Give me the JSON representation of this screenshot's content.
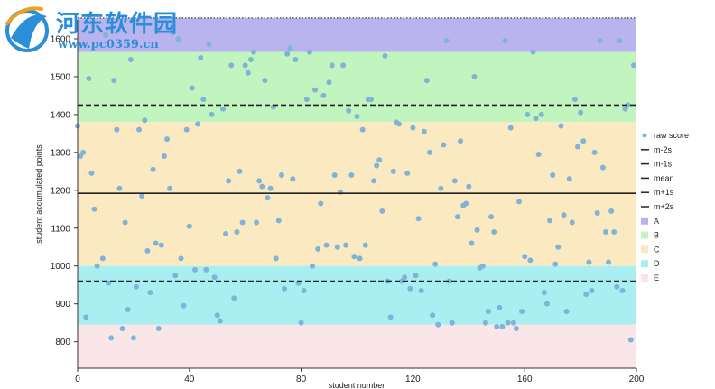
{
  "watermark": {
    "title": "河东软件园",
    "url": "www.pc0359.cn"
  },
  "chart_data": {
    "type": "scatter",
    "xlabel": "student number",
    "ylabel": "student accumulated points",
    "xlim": [
      0,
      200
    ],
    "ylim": [
      730,
      1650
    ],
    "x_ticks": [
      0,
      40,
      80,
      120,
      160,
      200
    ],
    "y_ticks": [
      800,
      900,
      1000,
      1100,
      1200,
      1300,
      1400,
      1500,
      1600
    ],
    "grade_bands": [
      {
        "label": "A",
        "from": 1565,
        "to": 1655,
        "color": "#b9b4ee"
      },
      {
        "label": "B",
        "from": 1380,
        "to": 1565,
        "color": "#c2f4c0"
      },
      {
        "label": "C",
        "from": 1000,
        "to": 1380,
        "color": "#fbe9c2"
      },
      {
        "label": "D",
        "from": 845,
        "to": 1000,
        "color": "#a9eef0"
      },
      {
        "label": "E",
        "from": 730,
        "to": 845,
        "color": "#fae6e8"
      }
    ],
    "reference_lines": [
      {
        "label": "m-2s",
        "y": 730,
        "style": "dotted"
      },
      {
        "label": "m-1s",
        "y": 960,
        "style": "dashed"
      },
      {
        "label": "mean",
        "y": 1192,
        "style": "solid"
      },
      {
        "label": "m+1s",
        "y": 1425,
        "style": "dashed"
      },
      {
        "label": "m+2s",
        "y": 1655,
        "style": "dotted"
      }
    ],
    "series": [
      {
        "name": "raw score",
        "color": "#7fb4d6",
        "points": [
          [
            0,
            1370
          ],
          [
            1,
            1290
          ],
          [
            2,
            1300
          ],
          [
            3,
            865
          ],
          [
            4,
            1495
          ],
          [
            5,
            1245
          ],
          [
            6,
            1150
          ],
          [
            7,
            1000
          ],
          [
            9,
            1020
          ],
          [
            10,
            1610
          ],
          [
            11,
            955
          ],
          [
            12,
            810
          ],
          [
            13,
            1490
          ],
          [
            14,
            1360
          ],
          [
            15,
            1205
          ],
          [
            16,
            835
          ],
          [
            17,
            1115
          ],
          [
            18,
            885
          ],
          [
            19,
            1545
          ],
          [
            20,
            810
          ],
          [
            21,
            945
          ],
          [
            22,
            1360
          ],
          [
            23,
            1185
          ],
          [
            24,
            1385
          ],
          [
            25,
            1040
          ],
          [
            26,
            930
          ],
          [
            27,
            1255
          ],
          [
            28,
            1060
          ],
          [
            29,
            835
          ],
          [
            30,
            1055
          ],
          [
            31,
            1290
          ],
          [
            32,
            1335
          ],
          [
            33,
            1205
          ],
          [
            34,
            1615
          ],
          [
            35,
            975
          ],
          [
            36,
            1600
          ],
          [
            37,
            1020
          ],
          [
            38,
            895
          ],
          [
            39,
            1360
          ],
          [
            40,
            1105
          ],
          [
            41,
            1470
          ],
          [
            42,
            990
          ],
          [
            43,
            1375
          ],
          [
            44,
            1550
          ],
          [
            45,
            1440
          ],
          [
            46,
            990
          ],
          [
            47,
            1585
          ],
          [
            48,
            1400
          ],
          [
            49,
            970
          ],
          [
            50,
            870
          ],
          [
            51,
            855
          ],
          [
            52,
            1415
          ],
          [
            53,
            1085
          ],
          [
            54,
            1225
          ],
          [
            55,
            1530
          ],
          [
            56,
            915
          ],
          [
            57,
            1090
          ],
          [
            58,
            1250
          ],
          [
            59,
            1115
          ],
          [
            60,
            1530
          ],
          [
            61,
            1510
          ],
          [
            62,
            1545
          ],
          [
            63,
            1565
          ],
          [
            64,
            1115
          ],
          [
            65,
            1225
          ],
          [
            66,
            1210
          ],
          [
            67,
            1490
          ],
          [
            68,
            1180
          ],
          [
            69,
            1205
          ],
          [
            70,
            1420
          ],
          [
            71,
            1020
          ],
          [
            72,
            1120
          ],
          [
            73,
            1240
          ],
          [
            74,
            940
          ],
          [
            75,
            1560
          ],
          [
            76,
            1575
          ],
          [
            77,
            1230
          ],
          [
            78,
            1545
          ],
          [
            79,
            955
          ],
          [
            80,
            850
          ],
          [
            81,
            935
          ],
          [
            82,
            1440
          ],
          [
            83,
            1565
          ],
          [
            84,
            1000
          ],
          [
            85,
            1465
          ],
          [
            86,
            1045
          ],
          [
            87,
            1165
          ],
          [
            88,
            1450
          ],
          [
            89,
            1055
          ],
          [
            90,
            1485
          ],
          [
            91,
            1530
          ],
          [
            92,
            1240
          ],
          [
            93,
            1050
          ],
          [
            94,
            1195
          ],
          [
            95,
            1530
          ],
          [
            96,
            1055
          ],
          [
            97,
            1410
          ],
          [
            98,
            1240
          ],
          [
            99,
            1025
          ],
          [
            100,
            1395
          ],
          [
            101,
            1020
          ],
          [
            102,
            1360
          ],
          [
            103,
            1055
          ],
          [
            104,
            1440
          ],
          [
            105,
            1440
          ],
          [
            106,
            1225
          ],
          [
            107,
            1265
          ],
          [
            108,
            1280
          ],
          [
            109,
            1145
          ],
          [
            110,
            1555
          ],
          [
            111,
            960
          ],
          [
            112,
            865
          ],
          [
            113,
            1250
          ],
          [
            114,
            1380
          ],
          [
            115,
            1375
          ],
          [
            116,
            960
          ],
          [
            117,
            970
          ],
          [
            118,
            1245
          ],
          [
            119,
            940
          ],
          [
            120,
            1365
          ],
          [
            121,
            975
          ],
          [
            122,
            1125
          ],
          [
            123,
            935
          ],
          [
            124,
            1355
          ],
          [
            125,
            1490
          ],
          [
            126,
            1300
          ],
          [
            127,
            870
          ],
          [
            128,
            1005
          ],
          [
            129,
            845
          ],
          [
            130,
            1205
          ],
          [
            131,
            1320
          ],
          [
            132,
            1595
          ],
          [
            133,
            960
          ],
          [
            134,
            850
          ],
          [
            135,
            1225
          ],
          [
            136,
            1130
          ],
          [
            137,
            1330
          ],
          [
            138,
            1160
          ],
          [
            139,
            1165
          ],
          [
            140,
            1210
          ],
          [
            141,
            1060
          ],
          [
            142,
            1500
          ],
          [
            143,
            1095
          ],
          [
            144,
            995
          ],
          [
            145,
            1000
          ],
          [
            146,
            850
          ],
          [
            147,
            880
          ],
          [
            148,
            1130
          ],
          [
            149,
            1090
          ],
          [
            150,
            840
          ],
          [
            151,
            890
          ],
          [
            152,
            840
          ],
          [
            153,
            1595
          ],
          [
            154,
            850
          ],
          [
            155,
            1365
          ],
          [
            156,
            850
          ],
          [
            157,
            835
          ],
          [
            158,
            1170
          ],
          [
            159,
            880
          ],
          [
            160,
            1025
          ],
          [
            161,
            1400
          ],
          [
            162,
            1015
          ],
          [
            163,
            1565
          ],
          [
            164,
            1390
          ],
          [
            165,
            1295
          ],
          [
            166,
            1400
          ],
          [
            167,
            930
          ],
          [
            168,
            900
          ],
          [
            169,
            1120
          ],
          [
            170,
            1240
          ],
          [
            171,
            1005
          ],
          [
            172,
            1050
          ],
          [
            173,
            1370
          ],
          [
            174,
            1135
          ],
          [
            175,
            880
          ],
          [
            176,
            1230
          ],
          [
            177,
            1115
          ],
          [
            178,
            1440
          ],
          [
            179,
            1315
          ],
          [
            180,
            1405
          ],
          [
            181,
            1330
          ],
          [
            182,
            925
          ],
          [
            183,
            1010
          ],
          [
            184,
            935
          ],
          [
            185,
            1300
          ],
          [
            186,
            1140
          ],
          [
            187,
            1595
          ],
          [
            188,
            1260
          ],
          [
            189,
            1090
          ],
          [
            190,
            1010
          ],
          [
            191,
            1145
          ],
          [
            192,
            1090
          ],
          [
            193,
            945
          ],
          [
            194,
            1595
          ],
          [
            195,
            935
          ],
          [
            196,
            1415
          ],
          [
            197,
            1425
          ],
          [
            198,
            805
          ],
          [
            199,
            1530
          ]
        ]
      }
    ],
    "legend": {
      "placement": "right",
      "entries": [
        "raw score",
        "m-2s",
        "m-1s",
        "mean",
        "m+1s",
        "m+2s",
        "A",
        "B",
        "C",
        "D",
        "E"
      ]
    }
  }
}
